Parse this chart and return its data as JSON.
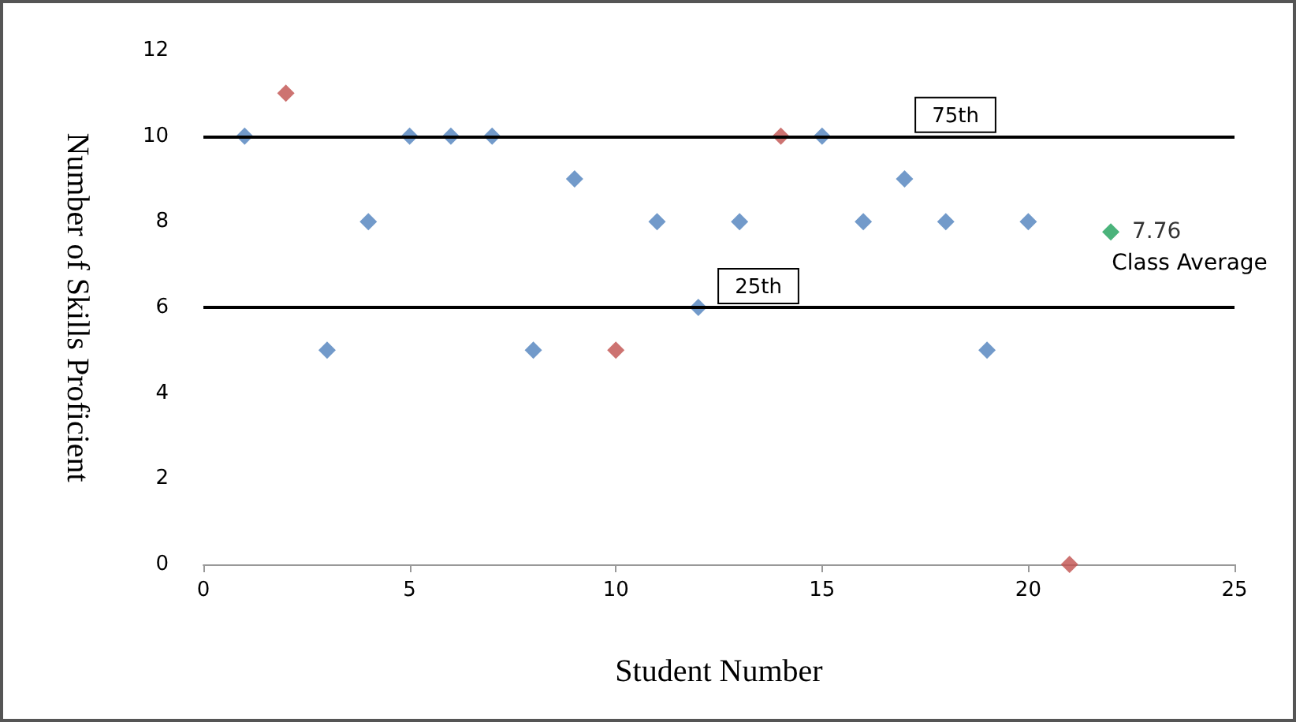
{
  "chart_data": {
    "type": "scatter",
    "xlabel": "Student Number",
    "ylabel": "Number of Skills Proficient",
    "marker": "diamond",
    "grid": false,
    "series": [
      {
        "color": "#4f81bd",
        "x": [
          1,
          3,
          4,
          5,
          6,
          7,
          8,
          9,
          11,
          12,
          13,
          15,
          16,
          17,
          18,
          19,
          20
        ],
        "values": [
          10,
          5,
          8,
          10,
          10,
          10,
          5,
          9,
          8,
          6,
          8,
          10,
          8,
          9,
          8,
          5,
          8
        ]
      },
      {
        "color": "#c0504d",
        "x": [
          2,
          10,
          14,
          21
        ],
        "values": [
          11,
          5,
          10,
          0
        ]
      },
      {
        "color": "#1ea05a",
        "x": [
          22
        ],
        "values": [
          7.76
        ],
        "value_labels": [
          "7.76"
        ]
      }
    ],
    "xlim": [
      0,
      25
    ],
    "xticks": [
      0,
      5,
      10,
      15,
      20,
      25
    ],
    "ylim": [
      0,
      12
    ],
    "yticks": [
      0,
      2,
      4,
      6,
      8,
      10,
      12
    ],
    "ref_lines": [
      {
        "axis": "y",
        "value": 10,
        "label": "75th",
        "color": "#000000"
      },
      {
        "axis": "y",
        "value": 6,
        "label": "25th",
        "color": "#000000"
      }
    ],
    "annotations": [
      {
        "text": "Class Average",
        "x": 22,
        "y": 7.76
      }
    ]
  }
}
